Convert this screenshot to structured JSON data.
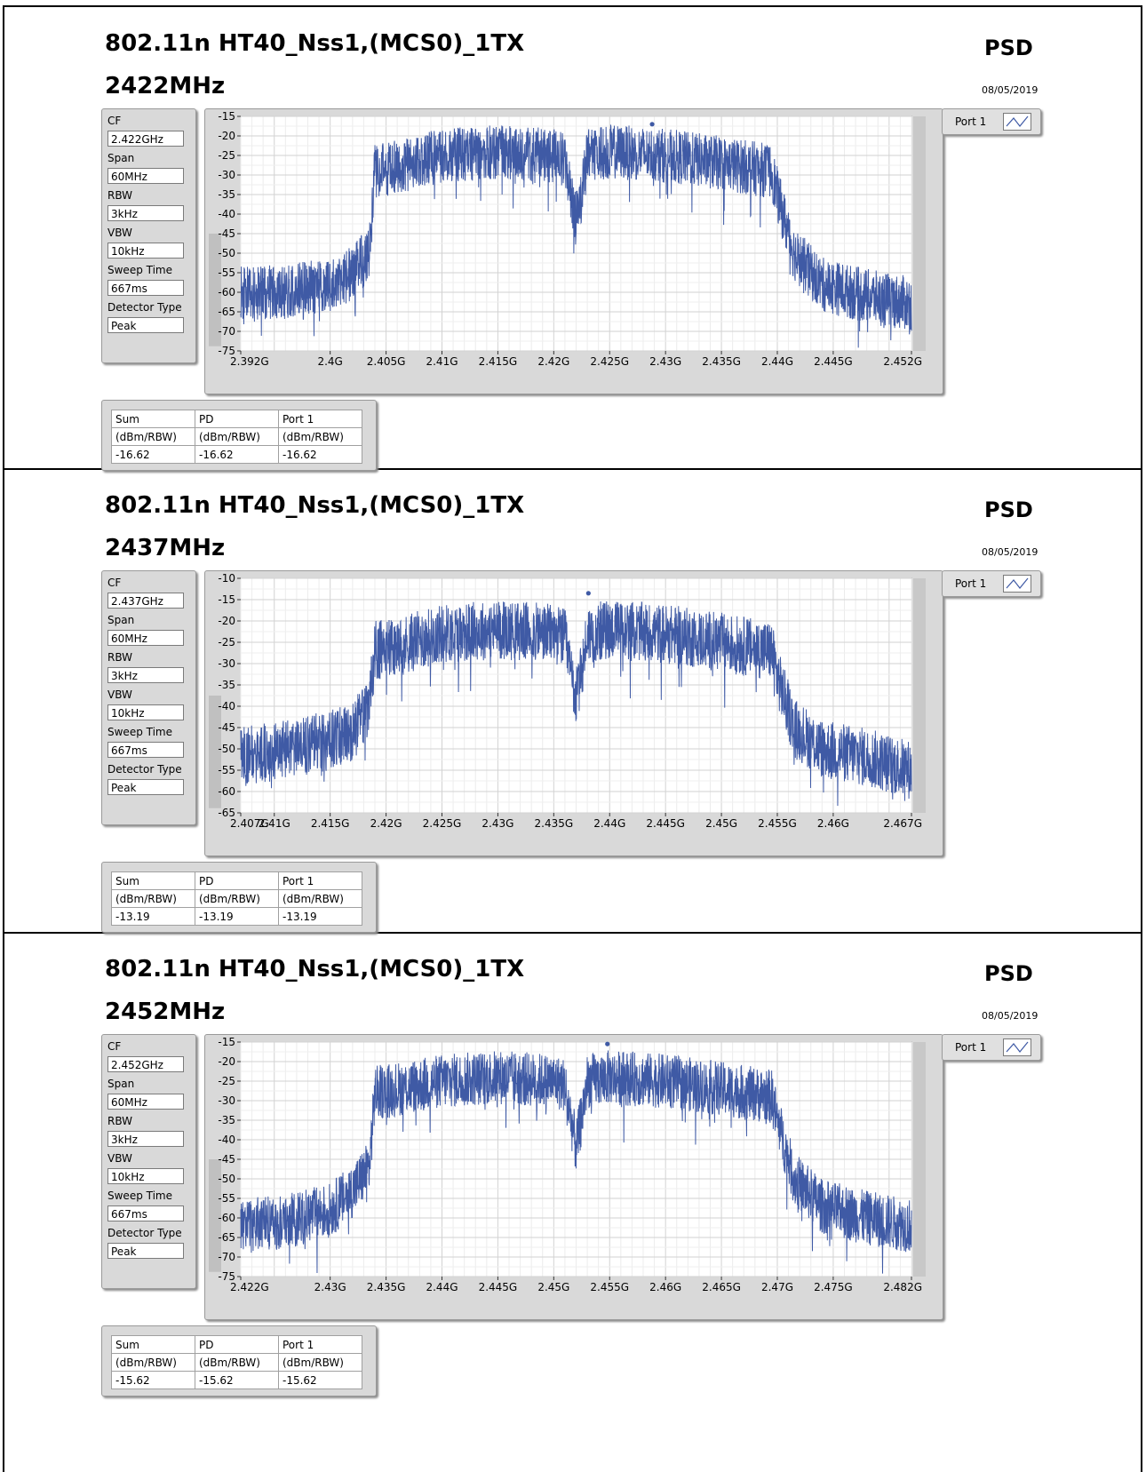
{
  "panels": [
    {
      "title": "802.11n HT40_Nss1,(MCS0)_1TX",
      "freq": "2422MHz",
      "psd": "PSD",
      "date": "08/05/2019",
      "settings": [
        {
          "label": "CF",
          "value": "2.422GHz"
        },
        {
          "label": "Span",
          "value": "60MHz"
        },
        {
          "label": "RBW",
          "value": "3kHz"
        },
        {
          "label": "VBW",
          "value": "10kHz"
        },
        {
          "label": "Sweep Time",
          "value": "667ms"
        },
        {
          "label": "Detector Type",
          "value": "Peak"
        }
      ],
      "legend": "Port 1",
      "summary": {
        "headers": [
          "Sum",
          "PD",
          "Port 1"
        ],
        "units": [
          "(dBm/RBW)",
          "(dBm/RBW)",
          "(dBm/RBW)"
        ],
        "values": [
          "-16.62",
          "-16.62",
          "-16.62"
        ]
      },
      "chart_data": {
        "type": "line",
        "xlim": [
          2.392,
          2.452
        ],
        "ylim": [
          -75,
          -15
        ],
        "xticks": [
          2.392,
          2.4,
          2.405,
          2.41,
          2.415,
          2.42,
          2.425,
          2.43,
          2.435,
          2.44,
          2.445,
          2.452
        ],
        "xtick_labels": [
          "2.392G",
          "2.4G",
          "2.405G",
          "2.41G",
          "2.415G",
          "2.42G",
          "2.425G",
          "2.43G",
          "2.435G",
          "2.44G",
          "2.445G",
          "2.452G"
        ],
        "yticks": [
          -15,
          -20,
          -25,
          -30,
          -35,
          -40,
          -45,
          -50,
          -55,
          -60,
          -65,
          -70,
          -75
        ],
        "ytick_labels": [
          "-15",
          "-20",
          "-25",
          "-30",
          "-35",
          "-40",
          "-45",
          "-50",
          "-55",
          "-60",
          "-65",
          "-70",
          "-75"
        ],
        "series": [
          {
            "x": [
              2.392,
              2.396,
              2.4,
              2.402,
              2.4035,
              2.404,
              2.406,
              2.41,
              2.415,
              2.42,
              2.421,
              2.4215,
              2.422,
              2.4225,
              2.423,
              2.425,
              2.43,
              2.435,
              2.4395,
              2.44,
              2.4415,
              2.444,
              2.448,
              2.452
            ],
            "y": [
              -60,
              -60,
              -58,
              -55,
              -50,
              -29,
              -28,
              -25,
              -24,
              -25,
              -26,
              -35,
              -41,
              -35,
              -25,
              -24,
              -25,
              -27,
              -29,
              -35,
              -50,
              -58,
              -61,
              -63
            ]
          }
        ],
        "marker": {
          "x": 2.4288,
          "y": -17
        }
      }
    },
    {
      "title": "802.11n HT40_Nss1,(MCS0)_1TX",
      "freq": "2437MHz",
      "psd": "PSD",
      "date": "08/05/2019",
      "settings": [
        {
          "label": "CF",
          "value": "2.437GHz"
        },
        {
          "label": "Span",
          "value": "60MHz"
        },
        {
          "label": "RBW",
          "value": "3kHz"
        },
        {
          "label": "VBW",
          "value": "10kHz"
        },
        {
          "label": "Sweep Time",
          "value": "667ms"
        },
        {
          "label": "Detector Type",
          "value": "Peak"
        }
      ],
      "legend": "Port 1",
      "summary": {
        "headers": [
          "Sum",
          "PD",
          "Port 1"
        ],
        "units": [
          "(dBm/RBW)",
          "(dBm/RBW)",
          "(dBm/RBW)"
        ],
        "values": [
          "-13.19",
          "-13.19",
          "-13.19"
        ]
      },
      "chart_data": {
        "type": "line",
        "xlim": [
          2.407,
          2.467
        ],
        "ylim": [
          -65,
          -10
        ],
        "xticks": [
          2.407,
          2.41,
          2.415,
          2.42,
          2.425,
          2.43,
          2.435,
          2.44,
          2.445,
          2.45,
          2.455,
          2.46,
          2.467
        ],
        "xtick_labels": [
          "2.407G",
          "2.41G",
          "2.415G",
          "2.42G",
          "2.425G",
          "2.43G",
          "2.435G",
          "2.44G",
          "2.445G",
          "2.45G",
          "2.455G",
          "2.46G",
          "2.467G"
        ],
        "yticks": [
          -10,
          -15,
          -20,
          -25,
          -30,
          -35,
          -40,
          -45,
          -50,
          -55,
          -60,
          -65
        ],
        "ytick_labels": [
          "-10",
          "-15",
          "-20",
          "-25",
          "-30",
          "-35",
          "-40",
          "-45",
          "-50",
          "-55",
          "-60",
          "-65"
        ],
        "series": [
          {
            "x": [
              2.407,
              2.411,
              2.415,
              2.417,
              2.4185,
              2.419,
              2.421,
              2.425,
              2.43,
              2.435,
              2.436,
              2.4365,
              2.437,
              2.4375,
              2.438,
              2.44,
              2.445,
              2.45,
              2.4545,
              2.455,
              2.4565,
              2.459,
              2.463,
              2.467
            ],
            "y": [
              -52,
              -50,
              -48,
              -46,
              -40,
              -27,
              -26,
              -23,
              -22,
              -23,
              -24,
              -32,
              -38,
              -32,
              -23,
              -22,
              -23,
              -25,
              -27,
              -33,
              -45,
              -50,
              -52,
              -55
            ]
          }
        ],
        "marker": {
          "x": 2.4381,
          "y": -13.5
        }
      }
    },
    {
      "title": "802.11n HT40_Nss1,(MCS0)_1TX",
      "freq": "2452MHz",
      "psd": "PSD",
      "date": "08/05/2019",
      "settings": [
        {
          "label": "CF",
          "value": "2.452GHz"
        },
        {
          "label": "Span",
          "value": "60MHz"
        },
        {
          "label": "RBW",
          "value": "3kHz"
        },
        {
          "label": "VBW",
          "value": "10kHz"
        },
        {
          "label": "Sweep Time",
          "value": "667ms"
        },
        {
          "label": "Detector Type",
          "value": "Peak"
        }
      ],
      "legend": "Port 1",
      "summary": {
        "headers": [
          "Sum",
          "PD",
          "Port 1"
        ],
        "units": [
          "(dBm/RBW)",
          "(dBm/RBW)",
          "(dBm/RBW)"
        ],
        "values": [
          "-15.62",
          "-15.62",
          "-15.62"
        ]
      },
      "chart_data": {
        "type": "line",
        "xlim": [
          2.422,
          2.482
        ],
        "ylim": [
          -75,
          -15
        ],
        "xticks": [
          2.422,
          2.43,
          2.435,
          2.44,
          2.445,
          2.45,
          2.455,
          2.46,
          2.465,
          2.47,
          2.475,
          2.482
        ],
        "xtick_labels": [
          "2.422G",
          "2.43G",
          "2.435G",
          "2.44G",
          "2.445G",
          "2.45G",
          "2.455G",
          "2.46G",
          "2.465G",
          "2.47G",
          "2.475G",
          "2.482G"
        ],
        "yticks": [
          -15,
          -20,
          -25,
          -30,
          -35,
          -40,
          -45,
          -50,
          -55,
          -60,
          -65,
          -70,
          -75
        ],
        "ytick_labels": [
          "-15",
          "-20",
          "-25",
          "-30",
          "-35",
          "-40",
          "-45",
          "-50",
          "-55",
          "-60",
          "-65",
          "-70",
          "-75"
        ],
        "series": [
          {
            "x": [
              2.422,
              2.426,
              2.43,
              2.432,
              2.4335,
              2.434,
              2.436,
              2.44,
              2.445,
              2.45,
              2.451,
              2.4515,
              2.452,
              2.4525,
              2.453,
              2.455,
              2.46,
              2.465,
              2.4695,
              2.47,
              2.4715,
              2.474,
              2.478,
              2.482
            ],
            "y": [
              -62,
              -61,
              -58,
              -53,
              -47,
              -28,
              -27,
              -25,
              -24,
              -25,
              -26,
              -34,
              -42,
              -34,
              -25,
              -24,
              -25,
              -27,
              -29,
              -35,
              -50,
              -57,
              -60,
              -62
            ]
          }
        ],
        "marker": {
          "x": 2.4548,
          "y": -15.5
        }
      }
    }
  ]
}
